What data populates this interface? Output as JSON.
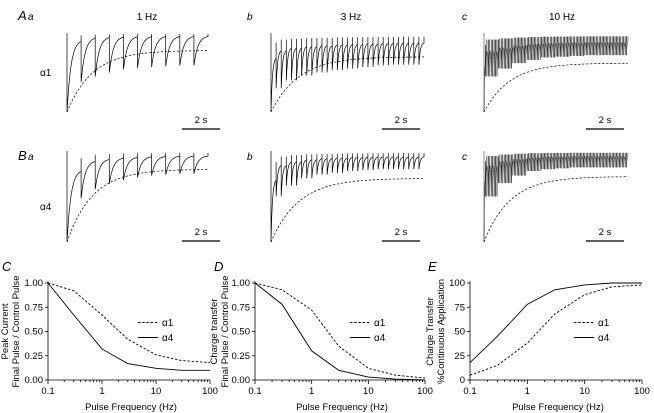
{
  "chart_data": [
    {
      "type": "trace",
      "panel": "Aa",
      "label": "A",
      "sublabel": "a",
      "row": "A",
      "title": "1 Hz",
      "subunit": "α1",
      "scalebar": "2 s",
      "pulses": 10,
      "peaks": [
        1.0,
        0.62,
        0.55,
        0.5,
        0.46,
        0.44,
        0.43,
        0.42,
        0.41,
        0.41
      ],
      "recovery": 0.92,
      "fit_plateau": 0.78
    },
    {
      "type": "trace",
      "panel": "Ab",
      "label": "b",
      "row": "A",
      "title": "3 Hz",
      "scalebar": "2 s",
      "pulses": 30,
      "peaks": [
        1.0,
        0.7,
        0.6,
        0.54,
        0.5,
        0.47,
        0.45,
        0.43,
        0.41,
        0.4
      ],
      "recovery": 0.7,
      "fit_plateau": 0.7
    },
    {
      "type": "trace",
      "panel": "Ac",
      "label": "c",
      "row": "A",
      "title": "10 Hz",
      "scalebar": "2 s",
      "pulses": 100,
      "peaks": [
        1.0,
        0.55,
        0.45,
        0.38,
        0.34,
        0.31,
        0.3,
        0.29,
        0.28,
        0.28
      ],
      "recovery": 0.62,
      "fit_plateau": 0.62
    },
    {
      "type": "trace",
      "panel": "Ba",
      "label": "B",
      "sublabel": "a",
      "row": "B",
      "title": "",
      "subunit": "α4",
      "scalebar": "2 s",
      "pulses": 10,
      "peaks": [
        1.0,
        0.52,
        0.42,
        0.36,
        0.32,
        0.29,
        0.27,
        0.26,
        0.25,
        0.25
      ],
      "recovery": 0.8,
      "fit_plateau": 0.8
    },
    {
      "type": "trace",
      "panel": "Bb",
      "label": "b",
      "row": "B",
      "title": "",
      "scalebar": "2 s",
      "pulses": 30,
      "peaks": [
        1.0,
        0.5,
        0.38,
        0.3,
        0.26,
        0.24,
        0.22,
        0.21,
        0.2,
        0.2
      ],
      "recovery": 0.7,
      "fit_plateau": 0.7
    },
    {
      "type": "trace",
      "panel": "Bc",
      "label": "c",
      "row": "B",
      "title": "",
      "scalebar": "2 s",
      "pulses": 100,
      "peaks": [
        1.0,
        0.5,
        0.35,
        0.27,
        0.22,
        0.2,
        0.19,
        0.18,
        0.18,
        0.18
      ],
      "recovery": 0.72,
      "fit_plateau": 0.72
    },
    {
      "type": "line",
      "panel": "C",
      "label": "C",
      "xlabel": "Pulse Frequency (Hz)",
      "ylabel": [
        "Peak Current",
        "Final Pulse / Control Pulse"
      ],
      "xscale": "log",
      "xlim": [
        0.1,
        100
      ],
      "ylim": [
        0,
        1
      ],
      "xticks": [
        0.1,
        1,
        10,
        100
      ],
      "xtick_labels": [
        "0.1",
        "1",
        "10",
        "100"
      ],
      "yticks": [
        0,
        0.25,
        0.5,
        0.75,
        1
      ],
      "ytick_labels": [
        "0.00",
        "0.25",
        "0.50",
        "0.75",
        "1.00"
      ],
      "legend_position": "right",
      "series": [
        {
          "name": "α1",
          "style": "dashed",
          "x": [
            0.1,
            0.3,
            1,
            3,
            10,
            30,
            100
          ],
          "y": [
            1.0,
            0.92,
            0.67,
            0.42,
            0.26,
            0.2,
            0.18
          ]
        },
        {
          "name": "α4",
          "style": "solid",
          "x": [
            0.1,
            0.3,
            1,
            3,
            10,
            30,
            100
          ],
          "y": [
            1.0,
            0.67,
            0.32,
            0.17,
            0.12,
            0.1,
            0.1
          ]
        }
      ]
    },
    {
      "type": "line",
      "panel": "D",
      "label": "D",
      "xlabel": "Pulse Frequency (Hz)",
      "ylabel": [
        "Charge transfer",
        "Final Pulse / Control Pulse"
      ],
      "xscale": "log",
      "xlim": [
        0.1,
        100
      ],
      "ylim": [
        0,
        1
      ],
      "xticks": [
        0.1,
        1,
        10,
        100
      ],
      "xtick_labels": [
        "0.1",
        "1",
        "10",
        "100"
      ],
      "yticks": [
        0,
        0.25,
        0.5,
        0.75,
        1
      ],
      "ytick_labels": [
        "0.00",
        "0.25",
        "0.50",
        "0.75",
        "1.00"
      ],
      "legend_position": "right",
      "series": [
        {
          "name": "α1",
          "style": "dashed",
          "x": [
            0.1,
            0.3,
            1,
            3,
            10,
            30,
            100
          ],
          "y": [
            1.0,
            0.93,
            0.72,
            0.35,
            0.12,
            0.05,
            0.02
          ]
        },
        {
          "name": "α4",
          "style": "solid",
          "x": [
            0.1,
            0.3,
            1,
            3,
            10,
            30,
            100
          ],
          "y": [
            1.0,
            0.78,
            0.3,
            0.1,
            0.03,
            0.01,
            0.0
          ]
        }
      ]
    },
    {
      "type": "line",
      "panel": "E",
      "label": "E",
      "xlabel": "Pulse Frequency (Hz)",
      "ylabel": [
        "Charge Transfer",
        "%Continuous Application"
      ],
      "xscale": "log",
      "xlim": [
        0.1,
        100
      ],
      "ylim": [
        0,
        100
      ],
      "xticks": [
        0.1,
        1,
        10,
        100
      ],
      "xtick_labels": [
        "0.1",
        "1",
        "10",
        "100"
      ],
      "yticks": [
        0,
        25,
        50,
        75,
        100
      ],
      "ytick_labels": [
        "0",
        "25",
        "50",
        "75",
        "100"
      ],
      "legend_position": "bottom-right",
      "series": [
        {
          "name": "α1",
          "style": "dashed",
          "x": [
            0.1,
            0.3,
            1,
            3,
            10,
            30,
            100
          ],
          "y": [
            5,
            15,
            38,
            68,
            88,
            96,
            98
          ]
        },
        {
          "name": "α4",
          "style": "solid",
          "x": [
            0.1,
            0.3,
            1,
            3,
            10,
            30,
            100
          ],
          "y": [
            18,
            45,
            78,
            93,
            98,
            100,
            100
          ]
        }
      ]
    }
  ]
}
